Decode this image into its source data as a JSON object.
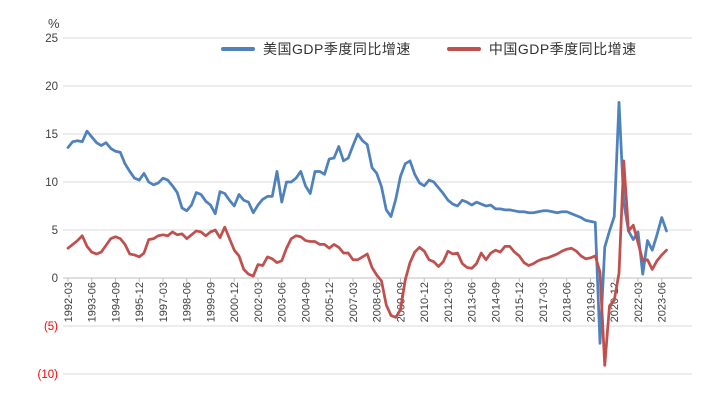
{
  "page": {
    "background": "#FFFFFF"
  },
  "chart_data": {
    "type": "line",
    "title": "",
    "xlabel": "",
    "ylabel": "",
    "grid": true,
    "legend_position": "top-center",
    "gridline_color": "#D9D9D9",
    "axis_line_color": "#BFBFBF",
    "y_axis": {
      "unit_label": "%",
      "min": -10,
      "max": 25,
      "tick_step": 5,
      "label_color": "#404040",
      "negative_label_color": "#FF0000",
      "ticks": [
        {
          "label": "25",
          "value": 25
        },
        {
          "label": "20",
          "value": 20
        },
        {
          "label": "15",
          "value": 15
        },
        {
          "label": "10",
          "value": 10
        },
        {
          "label": "5",
          "value": 5
        },
        {
          "label": "0",
          "value": 0
        },
        {
          "label": "(5)",
          "value": -5
        },
        {
          "label": "(10)",
          "value": -10
        }
      ]
    },
    "x_axis": {
      "frequency": "quarterly",
      "points_per_tick": 5,
      "label_color": "#404040",
      "tick_labels": [
        "1992-03",
        "1993-06",
        "1994-09",
        "1995-12",
        "1997-03",
        "1998-06",
        "1999-09",
        "2000-12",
        "2002-03",
        "2003-06",
        "2004-09",
        "2005-12",
        "2007-03",
        "2008-06",
        "2009-09",
        "2010-12",
        "2012-03",
        "2013-06",
        "2014-09",
        "2015-12",
        "2017-03",
        "2018-06",
        "2019-09",
        "2020-12",
        "2022-03",
        "2023-06"
      ]
    },
    "series": [
      {
        "name": "美国GDP季度同比增速",
        "color": "#4F81BD",
        "values": [
          13.6,
          14.2,
          14.3,
          14.2,
          15.3,
          14.7,
          14.1,
          13.8,
          14.1,
          13.5,
          13.2,
          13.1,
          11.9,
          11.1,
          10.4,
          10.2,
          10.9,
          10.0,
          9.7,
          9.9,
          10.4,
          10.2,
          9.6,
          8.9,
          7.3,
          7.0,
          7.6,
          8.9,
          8.7,
          8.0,
          7.6,
          6.7,
          9.0,
          8.8,
          8.1,
          7.5,
          8.7,
          8.1,
          7.9,
          6.8,
          7.6,
          8.2,
          8.5,
          8.5,
          11.1,
          7.9,
          10.0,
          10.0,
          10.4,
          11.1,
          9.6,
          8.8,
          11.1,
          11.1,
          10.8,
          12.4,
          12.5,
          13.7,
          12.2,
          12.5,
          13.8,
          15.0,
          14.3,
          13.9,
          11.5,
          10.9,
          9.5,
          7.1,
          6.4,
          8.2,
          10.6,
          11.9,
          12.2,
          10.8,
          9.9,
          9.6,
          10.2,
          10.0,
          9.4,
          8.8,
          8.1,
          7.7,
          7.5,
          8.1,
          7.9,
          7.6,
          7.9,
          7.7,
          7.5,
          7.6,
          7.2,
          7.2,
          7.1,
          7.1,
          7.0,
          6.9,
          6.9,
          6.8,
          6.8,
          6.9,
          7.0,
          7.0,
          6.9,
          6.8,
          6.9,
          6.9,
          6.7,
          6.5,
          6.3,
          6.0,
          5.9,
          5.8,
          -6.8,
          3.2,
          4.9,
          6.4,
          18.3,
          7.9,
          4.9,
          4.0,
          4.8,
          0.4,
          3.9,
          2.9,
          4.5,
          6.3,
          4.9
        ]
      },
      {
        "name": "中国GDP季度同比增速",
        "color": "#C0504D",
        "values": [
          3.1,
          3.5,
          3.9,
          4.4,
          3.3,
          2.7,
          2.5,
          2.7,
          3.4,
          4.1,
          4.3,
          4.1,
          3.5,
          2.5,
          2.4,
          2.2,
          2.6,
          4.0,
          4.1,
          4.4,
          4.5,
          4.4,
          4.8,
          4.5,
          4.6,
          4.1,
          4.5,
          4.9,
          4.8,
          4.4,
          4.8,
          5.0,
          4.2,
          5.3,
          4.1,
          2.9,
          2.3,
          0.9,
          0.4,
          0.2,
          1.4,
          1.3,
          2.2,
          2.0,
          1.6,
          1.8,
          3.1,
          4.1,
          4.4,
          4.3,
          3.9,
          3.8,
          3.8,
          3.5,
          3.5,
          3.1,
          3.5,
          3.2,
          2.6,
          2.6,
          1.9,
          1.9,
          2.2,
          2.5,
          1.1,
          0.3,
          -0.3,
          -2.8,
          -3.9,
          -4.1,
          -3.3,
          -0.2,
          1.6,
          2.7,
          3.2,
          2.8,
          1.9,
          1.7,
          1.2,
          1.7,
          2.8,
          2.5,
          2.6,
          1.5,
          1.1,
          1.0,
          1.5,
          2.6,
          1.9,
          2.6,
          2.9,
          2.7,
          3.3,
          3.3,
          2.7,
          2.3,
          1.6,
          1.3,
          1.5,
          1.8,
          2.0,
          2.1,
          2.3,
          2.5,
          2.8,
          3.0,
          3.1,
          2.8,
          2.3,
          2.0,
          2.1,
          2.3,
          0.6,
          -9.1,
          -2.9,
          -2.3,
          0.5,
          12.2,
          4.9,
          5.5,
          3.7,
          1.8,
          1.9,
          0.9,
          1.8,
          2.4,
          2.9
        ]
      }
    ]
  }
}
